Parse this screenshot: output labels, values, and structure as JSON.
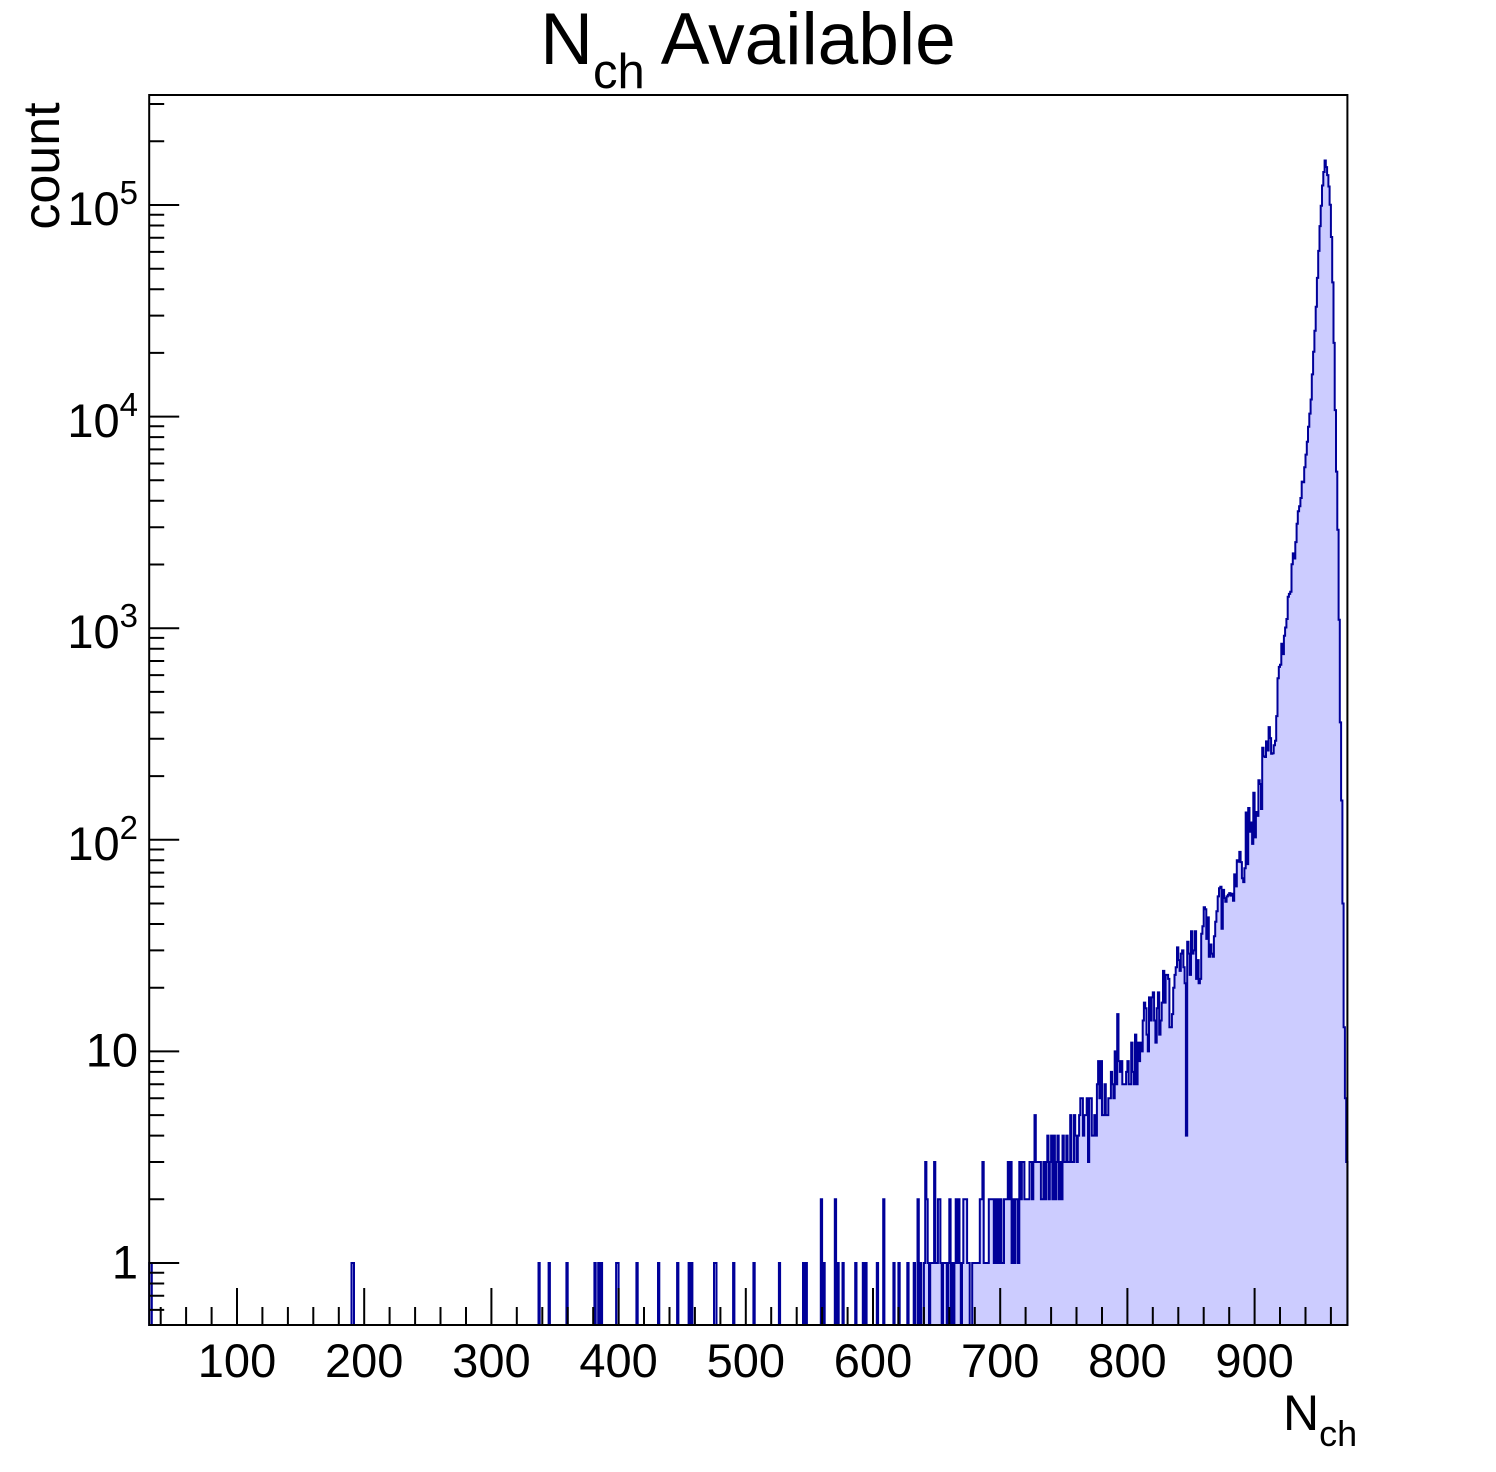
{
  "title": {
    "base": "N",
    "subscript": "ch",
    "suffix": "Available"
  },
  "y_axis": {
    "title": "count",
    "tick_labels": [
      {
        "base": "1",
        "exp": null
      },
      {
        "base": "10",
        "exp": null
      },
      {
        "base": "10",
        "exp": "2"
      },
      {
        "base": "10",
        "exp": "3"
      },
      {
        "base": "10",
        "exp": "4"
      },
      {
        "base": "10",
        "exp": "5"
      }
    ]
  },
  "x_axis": {
    "title_base": "N",
    "title_subscript": "ch",
    "tick_labels": [
      "100",
      "200",
      "300",
      "400",
      "500",
      "600",
      "700",
      "800",
      "900"
    ]
  },
  "colors": {
    "fill": "#ccccff",
    "line": "#000099",
    "frame": "#000000",
    "background": "#ffffff"
  },
  "chart_data": {
    "type": "bar",
    "style": "filled-step-histogram",
    "title": "N_ch Available",
    "xlabel": "N_ch",
    "ylabel": "count",
    "x_range": [
      31,
      973
    ],
    "bin_width": 1,
    "y_scale": "log",
    "ylim": [
      0.51,
      330000
    ],
    "grid": false,
    "legend": false,
    "x_major_ticks": [
      100,
      200,
      300,
      400,
      500,
      600,
      700,
      800,
      900
    ],
    "x_minor_tick_step": 20,
    "y_major_ticks": [
      1,
      10,
      100,
      1000,
      10000,
      100000
    ],
    "peak": {
      "x": 955,
      "count": 158000
    },
    "dense_start": 640,
    "noise_seed": 42,
    "envelope_points": [
      [
        640,
        0.85
      ],
      [
        660,
        0.95
      ],
      [
        680,
        1.15
      ],
      [
        700,
        1.5
      ],
      [
        715,
        1.9
      ],
      [
        730,
        2.4
      ],
      [
        745,
        3.0
      ],
      [
        760,
        4.0
      ],
      [
        775,
        5.5
      ],
      [
        790,
        7.5
      ],
      [
        805,
        10
      ],
      [
        820,
        14
      ],
      [
        835,
        19
      ],
      [
        850,
        26
      ],
      [
        865,
        38
      ],
      [
        878,
        55
      ],
      [
        890,
        85
      ],
      [
        900,
        140
      ],
      [
        908,
        220
      ],
      [
        916,
        400
      ],
      [
        922,
        850
      ],
      [
        928,
        1600
      ],
      [
        934,
        3200
      ],
      [
        940,
        6500
      ],
      [
        944,
        12000
      ],
      [
        947,
        25000
      ],
      [
        950,
        60000
      ],
      [
        952,
        100000
      ],
      [
        954,
        145000
      ],
      [
        955,
        158000
      ],
      [
        956,
        152000
      ],
      [
        957,
        140000
      ],
      [
        958,
        122000
      ],
      [
        959,
        98000
      ],
      [
        960,
        70000
      ],
      [
        961,
        42000
      ],
      [
        962,
        22000
      ],
      [
        963,
        11000
      ],
      [
        964,
        5800
      ],
      [
        965,
        2600
      ],
      [
        966,
        1100
      ],
      [
        967,
        420
      ],
      [
        968,
        140
      ],
      [
        969,
        40
      ],
      [
        970,
        11
      ],
      [
        971,
        5
      ],
      [
        972,
        4
      ]
    ],
    "sparse_bars": [
      [
        31,
        1
      ],
      [
        32,
        1
      ],
      [
        190,
        1
      ],
      [
        191,
        1
      ],
      [
        337,
        1
      ],
      [
        345,
        1
      ],
      [
        359,
        1
      ],
      [
        381,
        1
      ],
      [
        384,
        1
      ],
      [
        386,
        1
      ],
      [
        398,
        1
      ],
      [
        399,
        1
      ],
      [
        414,
        1
      ],
      [
        431,
        1
      ],
      [
        446,
        1
      ],
      [
        455,
        1
      ],
      [
        457,
        1
      ],
      [
        475,
        1
      ],
      [
        476,
        1
      ],
      [
        490,
        1
      ],
      [
        506,
        1
      ],
      [
        526,
        1
      ],
      [
        545,
        1
      ],
      [
        547,
        1
      ],
      [
        559,
        2
      ],
      [
        561,
        1
      ],
      [
        570,
        2
      ],
      [
        572,
        1
      ],
      [
        576,
        1
      ],
      [
        586,
        1
      ],
      [
        592,
        1
      ],
      [
        594,
        1
      ],
      [
        603,
        1
      ],
      [
        608,
        2
      ],
      [
        616,
        1
      ],
      [
        620,
        1
      ],
      [
        627,
        1
      ],
      [
        632,
        1
      ],
      [
        635,
        2
      ],
      [
        637,
        1
      ]
    ],
    "notable_bars": [
      [
        641,
        3
      ],
      [
        648,
        3
      ],
      [
        652,
        2
      ],
      [
        660,
        2
      ],
      [
        665,
        2
      ],
      [
        672,
        2
      ],
      [
        686,
        3
      ],
      [
        694,
        2
      ],
      [
        700,
        2
      ],
      [
        706,
        3
      ],
      [
        713,
        2
      ],
      [
        718,
        3
      ],
      [
        724,
        3
      ],
      [
        727,
        5
      ],
      [
        730,
        3
      ],
      [
        736,
        3
      ],
      [
        742,
        4
      ],
      [
        747,
        3
      ],
      [
        753,
        3
      ],
      [
        761,
        4
      ],
      [
        768,
        6
      ],
      [
        776,
        7
      ],
      [
        784,
        5
      ],
      [
        792,
        15
      ],
      [
        800,
        9
      ],
      [
        806,
        12
      ],
      [
        846,
        4
      ],
      [
        852,
        30
      ],
      [
        864,
        28
      ],
      [
        886,
        80
      ]
    ]
  }
}
